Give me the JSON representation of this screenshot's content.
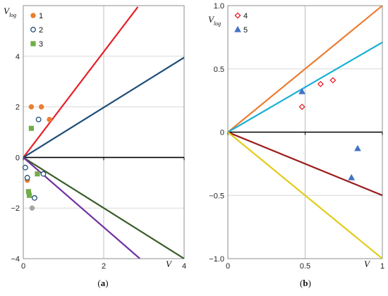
{
  "chart_data": [
    {
      "type": "line",
      "panel": "a",
      "caption": "(a)",
      "caption_letter": "a",
      "xlabel": "V",
      "ylabel_main": "V",
      "ylabel_sub": "log",
      "xlim": [
        0,
        4
      ],
      "ylim": [
        -4,
        6
      ],
      "xticks": [
        0,
        2,
        4
      ],
      "yticks": [
        -4,
        -2,
        0,
        2,
        4
      ],
      "grid": true,
      "legend_position": "top-left",
      "lines": [
        {
          "color": "#e8202a",
          "x": [
            0,
            2.85
          ],
          "y": [
            0,
            5.95
          ]
        },
        {
          "color": "#1f4e79",
          "x": [
            0,
            4
          ],
          "y": [
            0,
            3.95
          ]
        },
        {
          "color": "#3b5e2b",
          "x": [
            0,
            4
          ],
          "y": [
            0,
            -4
          ]
        },
        {
          "color": "#7030a0",
          "x": [
            0,
            2.9
          ],
          "y": [
            0,
            -4
          ]
        }
      ],
      "series": [
        {
          "name": "1",
          "marker": "circle",
          "color": "#ed7d31",
          "filled": true,
          "x": [
            0.2,
            0.45,
            0.65,
            0.1,
            0.15
          ],
          "y": [
            2.0,
            2.0,
            1.5,
            -0.9,
            -1.45
          ]
        },
        {
          "name": "2",
          "marker": "circle",
          "color": "#1f4e79",
          "filled": false,
          "x": [
            0.38,
            0.05,
            0.1,
            0.5,
            0.28
          ],
          "y": [
            1.5,
            -0.4,
            -0.8,
            -0.65,
            -1.6
          ]
        },
        {
          "name": "3",
          "marker": "square",
          "color": "#70ad47",
          "filled": true,
          "x": [
            0.2,
            0.35,
            0.13,
            0.15
          ],
          "y": [
            1.15,
            -0.65,
            -1.35,
            -1.5
          ]
        },
        {
          "name": "",
          "marker": "circle",
          "color": "#a5a5a5",
          "filled": true,
          "x": [
            0.22
          ],
          "y": [
            -2.0
          ]
        }
      ]
    },
    {
      "type": "scatter",
      "panel": "b",
      "caption": "(b)",
      "caption_letter": "b",
      "xlabel": "V",
      "ylabel_main": "V",
      "ylabel_sub": "log",
      "xlim": [
        0,
        1
      ],
      "ylim": [
        -1.0,
        1.0
      ],
      "xticks": [
        0,
        0.5,
        1
      ],
      "xtick_labels": [
        "0",
        "0.5",
        "1"
      ],
      "yticks": [
        -1.0,
        -0.5,
        0,
        0.5,
        1.0
      ],
      "ytick_labels": [
        "-1.0",
        "-0.5",
        "0",
        "0.5",
        "1.0"
      ],
      "grid": true,
      "legend_position": "top-left",
      "lines": [
        {
          "color": "#ed7d31",
          "x": [
            0,
            1
          ],
          "y": [
            0,
            1.0
          ]
        },
        {
          "color": "#17b0d6",
          "x": [
            0,
            1
          ],
          "y": [
            0,
            0.71
          ]
        },
        {
          "color": "#9b1c1c",
          "x": [
            0,
            1
          ],
          "y": [
            0,
            -0.5
          ]
        },
        {
          "color": "#e2cc1a",
          "x": [
            0,
            1
          ],
          "y": [
            0,
            -1.0
          ]
        }
      ],
      "series": [
        {
          "name": "4",
          "marker": "diamond",
          "color": "#e8202a",
          "filled": false,
          "x": [
            0.48,
            0.6,
            0.68
          ],
          "y": [
            0.2,
            0.38,
            0.41
          ]
        },
        {
          "name": "5",
          "marker": "triangle",
          "color": "#4472c4",
          "filled": true,
          "x": [
            0.48,
            0.8,
            0.84
          ],
          "y": [
            0.32,
            -0.36,
            -0.13
          ]
        }
      ]
    }
  ]
}
